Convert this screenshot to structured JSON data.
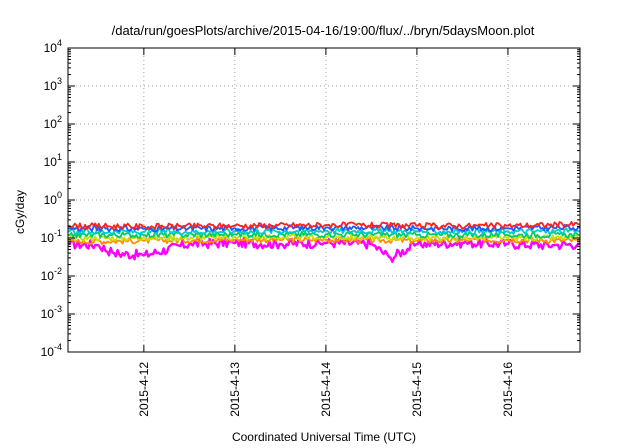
{
  "chart_data": {
    "type": "line",
    "title": "/data/run/goesPlots/archive/2015-04-16/19:00/flux/../bryn/5daysMoon.plot",
    "xlabel": "Coordinated Universal Time (UTC)",
    "ylabel": "cGy/day",
    "y_scale": "log",
    "ylim": [
      0.0001,
      10000
    ],
    "y_ticks": [
      {
        "value": 0.0001,
        "base": "10",
        "exp": "-4"
      },
      {
        "value": 0.001,
        "base": "10",
        "exp": "-3"
      },
      {
        "value": 0.01,
        "base": "10",
        "exp": "-2"
      },
      {
        "value": 0.1,
        "base": "10",
        "exp": "-1"
      },
      {
        "value": 1,
        "base": "10",
        "exp": "0"
      },
      {
        "value": 10,
        "base": "10",
        "exp": "1"
      },
      {
        "value": 100,
        "base": "10",
        "exp": "2"
      },
      {
        "value": 1000,
        "base": "10",
        "exp": "3"
      },
      {
        "value": 10000,
        "base": "10",
        "exp": "4"
      }
    ],
    "xlim": [
      "2015-04-11 04:00",
      "2015-04-16 19:00"
    ],
    "x_ticks": [
      {
        "value": "2015-04-12 00:00",
        "label": "2015-4-12"
      },
      {
        "value": "2015-04-13 00:00",
        "label": "2015-4-13"
      },
      {
        "value": "2015-04-14 00:00",
        "label": "2015-4-14"
      },
      {
        "value": "2015-04-15 00:00",
        "label": "2015-4-15"
      },
      {
        "value": "2015-04-16 00:00",
        "label": "2015-4-16"
      }
    ],
    "grid": true,
    "legend": "none",
    "series": [
      {
        "color": "#ff00ff",
        "x": [
          "2015-04-11 04:00",
          "2015-04-11 12:00",
          "2015-04-11 16:00",
          "2015-04-12 00:00",
          "2015-04-12 12:00",
          "2015-04-13 00:00",
          "2015-04-13 12:00",
          "2015-04-14 00:00",
          "2015-04-14 12:00",
          "2015-04-14 17:00",
          "2015-04-15 00:00",
          "2015-04-15 12:00",
          "2015-04-16 00:00",
          "2015-04-16 12:00",
          "2015-04-16 19:00"
        ],
        "y": [
          0.07,
          0.065,
          0.04,
          0.035,
          0.07,
          0.075,
          0.07,
          0.075,
          0.07,
          0.03,
          0.07,
          0.075,
          0.07,
          0.065,
          0.07
        ]
      },
      {
        "color": "#ff8c00",
        "x": [
          "2015-04-11 04:00",
          "2015-04-12 00:00",
          "2015-04-13 00:00",
          "2015-04-14 00:00",
          "2015-04-15 00:00",
          "2015-04-16 00:00",
          "2015-04-16 19:00"
        ],
        "y": [
          0.08,
          0.085,
          0.09,
          0.09,
          0.085,
          0.09,
          0.085
        ]
      },
      {
        "color": "#ccdd00",
        "x": [
          "2015-04-11 04:00",
          "2015-04-12 00:00",
          "2015-04-13 00:00",
          "2015-04-14 00:00",
          "2015-04-15 00:00",
          "2015-04-16 00:00",
          "2015-04-16 19:00"
        ],
        "y": [
          0.1,
          0.1,
          0.105,
          0.105,
          0.1,
          0.1,
          0.1
        ]
      },
      {
        "color": "#00cc66",
        "x": [
          "2015-04-11 04:00",
          "2015-04-12 00:00",
          "2015-04-13 00:00",
          "2015-04-14 00:00",
          "2015-04-15 00:00",
          "2015-04-16 00:00",
          "2015-04-16 19:00"
        ],
        "y": [
          0.12,
          0.12,
          0.125,
          0.125,
          0.12,
          0.12,
          0.12
        ]
      },
      {
        "color": "#00cccc",
        "x": [
          "2015-04-11 04:00",
          "2015-04-12 00:00",
          "2015-04-13 00:00",
          "2015-04-14 00:00",
          "2015-04-15 00:00",
          "2015-04-16 00:00",
          "2015-04-16 19:00"
        ],
        "y": [
          0.15,
          0.145,
          0.15,
          0.155,
          0.15,
          0.15,
          0.15
        ]
      },
      {
        "color": "#1e5aff",
        "x": [
          "2015-04-11 04:00",
          "2015-04-12 00:00",
          "2015-04-13 00:00",
          "2015-04-14 00:00",
          "2015-04-15 00:00",
          "2015-04-16 00:00",
          "2015-04-16 19:00"
        ],
        "y": [
          0.18,
          0.175,
          0.18,
          0.19,
          0.18,
          0.18,
          0.19
        ]
      },
      {
        "color": "#ff2020",
        "x": [
          "2015-04-11 04:00",
          "2015-04-12 00:00",
          "2015-04-13 00:00",
          "2015-04-14 00:00",
          "2015-04-15 00:00",
          "2015-04-16 00:00",
          "2015-04-16 19:00"
        ],
        "y": [
          0.21,
          0.2,
          0.21,
          0.22,
          0.21,
          0.21,
          0.23
        ]
      }
    ]
  }
}
